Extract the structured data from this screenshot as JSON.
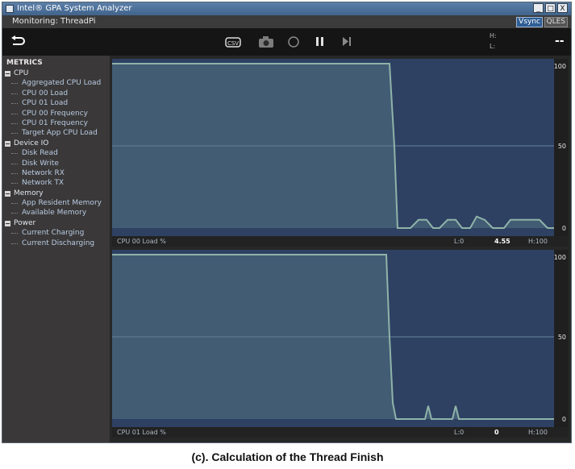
{
  "window": {
    "title": "Intel® GPA System Analyzer",
    "controls": [
      "_",
      "□",
      "X"
    ]
  },
  "subbar": {
    "monitoring": "Monitoring: ThreadPi",
    "vsync": "Vsync",
    "qles": "QLES"
  },
  "toolbar": {
    "buttons": [
      "back-icon",
      "csv-export-icon",
      "camera-icon",
      "record-icon",
      "pause-icon",
      "step-icon"
    ],
    "h_label": "H:",
    "l_label": "L:",
    "value_display": "--"
  },
  "metrics": {
    "header": "METRICS",
    "categories": [
      {
        "label": "CPU",
        "items": [
          "Aggregated CPU Load",
          "CPU 00 Load",
          "CPU 01 Load",
          "CPU 00 Frequency",
          "CPU 01 Frequency",
          "Target App CPU Load"
        ]
      },
      {
        "label": "Device IO",
        "items": [
          "Disk Read",
          "Disk Write",
          "Network RX",
          "Network TX"
        ]
      },
      {
        "label": "Memory",
        "items": [
          "App Resident Memory",
          "Available Memory"
        ]
      },
      {
        "label": "Power",
        "items": [
          "Current Charging",
          "Current Discharging"
        ]
      }
    ]
  },
  "charts": [
    {
      "name": "CPU 00 Load %",
      "low": "L:0",
      "current": "4.55",
      "high": "H:100",
      "ticks": [
        "100",
        "50",
        "0"
      ]
    },
    {
      "name": "CPU 01 Load %",
      "low": "L:0",
      "current": "0",
      "high": "H:100",
      "ticks": [
        "100",
        "50",
        "0"
      ]
    }
  ],
  "chart_data": [
    {
      "type": "area",
      "ylim": [
        0,
        100
      ],
      "grid": true,
      "x": [
        0,
        344,
        350,
        354,
        358,
        360,
        370,
        380,
        390,
        398,
        406,
        416,
        426,
        434,
        444,
        452,
        462,
        472,
        486,
        494,
        502,
        516,
        530,
        540,
        548
      ],
      "series": [
        {
          "name": "CPU 00 Load %",
          "values": [
            100,
            100,
            50,
            0,
            0,
            0,
            0,
            5,
            5,
            0,
            0,
            5,
            5,
            0,
            0,
            7,
            5,
            0,
            0,
            5,
            5,
            5,
            5,
            0,
            0
          ]
        }
      ]
    },
    {
      "type": "area",
      "ylim": [
        0,
        100
      ],
      "grid": true,
      "x": [
        0,
        340,
        344,
        348,
        352,
        356,
        388,
        392,
        396,
        400,
        422,
        426,
        430,
        434,
        548
      ],
      "series": [
        {
          "name": "CPU 01 Load %",
          "values": [
            100,
            100,
            50,
            10,
            0,
            0,
            0,
            8,
            0,
            0,
            0,
            8,
            0,
            0,
            0
          ]
        }
      ]
    }
  ],
  "caption": "(c). Calculation of the Thread Finish"
}
